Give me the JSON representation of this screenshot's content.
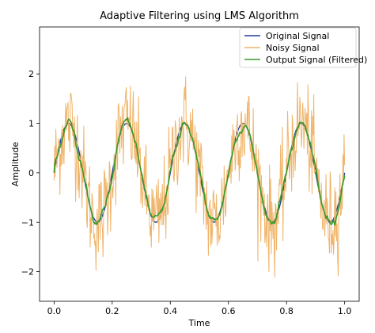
{
  "chart_data": {
    "type": "line",
    "title": "Adaptive Filtering using LMS Algorithm",
    "xlabel": "Time",
    "ylabel": "Amplitude",
    "xlim": [
      -0.05,
      1.05
    ],
    "ylim": [
      -2.6,
      2.95
    ],
    "xticks": [
      0.0,
      0.2,
      0.4,
      0.6,
      0.8,
      1.0
    ],
    "xtick_labels": [
      "0.0",
      "0.2",
      "0.4",
      "0.6",
      "0.8",
      "1.0"
    ],
    "yticks": [
      -2,
      -1,
      0,
      1,
      2
    ],
    "ytick_labels": [
      "−2",
      "−1",
      "0",
      "1",
      "2"
    ],
    "grid": false,
    "legend_position": "top-right",
    "signal_frequency_hz": 5,
    "noise_amplitude_approx": 0.5,
    "series": [
      {
        "name": "Original Signal",
        "color": "#1f3f9f",
        "description_form": "sin(2*pi*5*t)"
      },
      {
        "name": "Noisy Signal",
        "color": "#f0b46a"
      },
      {
        "name": "Output Signal (Filtered)",
        "color": "#3a9a2a"
      }
    ],
    "sampled_values": {
      "x": [
        0.0,
        0.05,
        0.1,
        0.15,
        0.2,
        0.25,
        0.3,
        0.35,
        0.4,
        0.45,
        0.5,
        0.55,
        0.6,
        0.65,
        0.7,
        0.75,
        0.8,
        0.85,
        0.9,
        0.95,
        1.0
      ],
      "original": [
        0.0,
        1.0,
        0.0,
        -1.0,
        0.0,
        1.0,
        0.0,
        -1.0,
        0.0,
        1.0,
        0.0,
        -1.0,
        0.0,
        1.0,
        0.0,
        -1.0,
        0.0,
        1.0,
        0.0,
        -1.0,
        0.0
      ],
      "filtered": [
        0.0,
        1.05,
        0.05,
        -1.05,
        0.0,
        1.1,
        0.0,
        -0.95,
        0.05,
        1.05,
        -0.05,
        -1.0,
        0.0,
        1.05,
        0.05,
        -1.05,
        0.0,
        1.0,
        0.05,
        -1.0,
        0.0
      ]
    }
  }
}
